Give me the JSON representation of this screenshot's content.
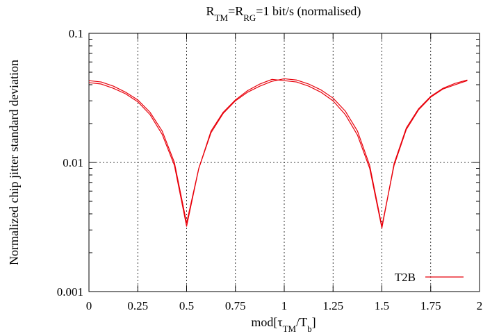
{
  "chart_data": {
    "type": "line",
    "title": {
      "parts": [
        {
          "text": "R",
          "sub": false
        },
        {
          "text": "TM",
          "sub": true
        },
        {
          "text": "=R",
          "sub": false
        },
        {
          "text": "RG",
          "sub": true
        },
        {
          "text": "=1 bit/s (normalised)",
          "sub": false
        }
      ]
    },
    "xlabel": {
      "parts": [
        {
          "text": "mod[",
          "sub": false
        },
        {
          "text": "τ",
          "sub": false
        },
        {
          "text": "TM",
          "sub": true
        },
        {
          "text": "/T",
          "sub": false
        },
        {
          "text": "b",
          "sub": true
        },
        {
          "text": "]",
          "sub": false
        }
      ]
    },
    "ylabel": "Normalized chip jitter standard deviation",
    "y_scale": "log",
    "xlim": [
      0,
      2
    ],
    "ylim": [
      0.001,
      0.1
    ],
    "grid": true,
    "legend_position": "bottom-right",
    "x_ticks": [
      {
        "value": 0,
        "label": "0"
      },
      {
        "value": 0.25,
        "label": "0.25"
      },
      {
        "value": 0.5,
        "label": "0.5"
      },
      {
        "value": 0.75,
        "label": "0.75"
      },
      {
        "value": 1,
        "label": "1"
      },
      {
        "value": 1.25,
        "label": "1.25"
      },
      {
        "value": 1.5,
        "label": "1.5"
      },
      {
        "value": 1.75,
        "label": "1.75"
      },
      {
        "value": 2,
        "label": "2"
      }
    ],
    "y_ticks": [
      {
        "value": 0.001,
        "label": "0.001"
      },
      {
        "value": 0.01,
        "label": "0.01"
      },
      {
        "value": 0.1,
        "label": "0.1"
      }
    ],
    "series": [
      {
        "name": "T2B",
        "color": "#e8000b",
        "lines": [
          [
            [
              0,
              0.043
            ],
            [
              0.0625,
              0.042
            ],
            [
              0.125,
              0.039
            ],
            [
              0.1875,
              0.035
            ],
            [
              0.25,
              0.0305
            ],
            [
              0.3125,
              0.0245
            ],
            [
              0.375,
              0.0175
            ],
            [
              0.4375,
              0.01
            ],
            [
              0.5,
              0.0034
            ],
            [
              0.5625,
              0.009
            ],
            [
              0.625,
              0.017
            ],
            [
              0.6875,
              0.024
            ],
            [
              0.75,
              0.03
            ],
            [
              0.8125,
              0.035
            ],
            [
              0.875,
              0.039
            ],
            [
              0.9375,
              0.0425
            ],
            [
              1,
              0.0445
            ],
            [
              1.0625,
              0.0435
            ],
            [
              1.125,
              0.0405
            ],
            [
              1.1875,
              0.0365
            ],
            [
              1.25,
              0.0315
            ],
            [
              1.3125,
              0.025
            ],
            [
              1.375,
              0.0175
            ],
            [
              1.4375,
              0.0095
            ],
            [
              1.5,
              0.0032
            ],
            [
              1.5625,
              0.0095
            ],
            [
              1.625,
              0.018
            ],
            [
              1.6875,
              0.0255
            ],
            [
              1.75,
              0.032
            ],
            [
              1.8125,
              0.037
            ],
            [
              1.875,
              0.04
            ],
            [
              1.9375,
              0.043
            ]
          ],
          [
            [
              0,
              0.0415
            ],
            [
              0.0625,
              0.0405
            ],
            [
              0.125,
              0.0375
            ],
            [
              0.1875,
              0.034
            ],
            [
              0.25,
              0.0295
            ],
            [
              0.3125,
              0.0235
            ],
            [
              0.375,
              0.0165
            ],
            [
              0.4375,
              0.0095
            ],
            [
              0.5,
              0.0032
            ],
            [
              0.5625,
              0.009
            ],
            [
              0.625,
              0.0175
            ],
            [
              0.6875,
              0.0245
            ],
            [
              0.75,
              0.0305
            ],
            [
              0.8125,
              0.036
            ],
            [
              0.875,
              0.0405
            ],
            [
              0.9375,
              0.044
            ],
            [
              1,
              0.043
            ],
            [
              1.0625,
              0.042
            ],
            [
              1.125,
              0.039
            ],
            [
              1.1875,
              0.035
            ],
            [
              1.25,
              0.03
            ],
            [
              1.3125,
              0.0235
            ],
            [
              1.375,
              0.0163
            ],
            [
              1.4375,
              0.009
            ],
            [
              1.5,
              0.0031
            ],
            [
              1.5625,
              0.0098
            ],
            [
              1.625,
              0.0185
            ],
            [
              1.6875,
              0.026
            ],
            [
              1.75,
              0.0325
            ],
            [
              1.8125,
              0.0375
            ],
            [
              1.875,
              0.041
            ],
            [
              1.9375,
              0.0435
            ]
          ]
        ]
      }
    ]
  }
}
